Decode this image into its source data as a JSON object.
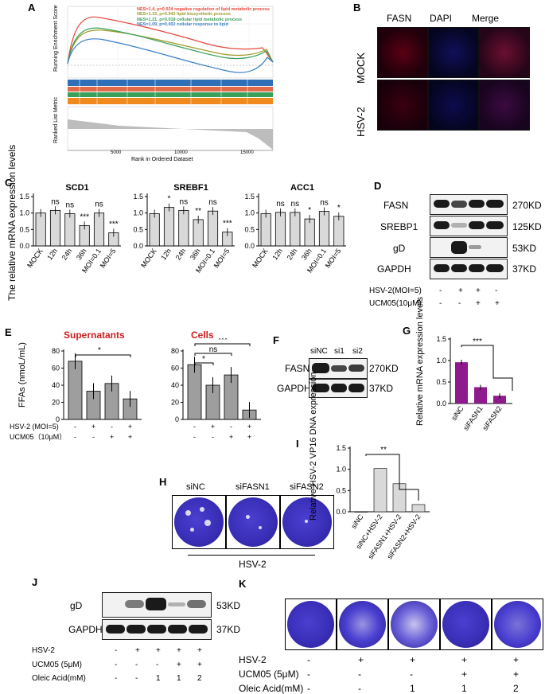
{
  "panels": {
    "A": "A",
    "B": "B",
    "C": "C",
    "D": "D",
    "E": "E",
    "F": "F",
    "G": "G",
    "H": "H",
    "I": "I",
    "J": "J",
    "K": "K"
  },
  "panelA": {
    "ylabel_top": "Running Enrichment Score",
    "ylabel_bottom": "Ranked List Metric",
    "xlabel": "Rank in Ordered Dataset",
    "xticks": [
      "5000",
      "10000",
      "15000"
    ],
    "legend": [
      {
        "text": "NES=1.4, p=0.024 negative regulation of lipid metabolic process",
        "color": "#e8463a"
      },
      {
        "text": "NES=1.15, p=0.043 lipid biosynthetic process",
        "color": "#9c9a2a"
      },
      {
        "text": "NES=1.21, p=0.018 cellular lipid metabolic process",
        "color": "#3aa05a"
      },
      {
        "text": "NES=1.09, p=0.002 cellular response to lipid",
        "color": "#3a7fc4"
      }
    ]
  },
  "panelB": {
    "cols": [
      "FASN",
      "DAPI",
      "Merge"
    ],
    "rows": [
      "MOCK",
      "HSV-2"
    ]
  },
  "panelC": {
    "ylabel": "The relative mRNA expression levels",
    "categories": [
      "MOCK",
      "12h",
      "24h",
      "36h",
      "MOI=0.1",
      "MOI=5"
    ],
    "charts": [
      {
        "title": "SCD1",
        "values": [
          1.0,
          1.08,
          0.98,
          0.62,
          1.0,
          0.4
        ],
        "sig": [
          "",
          "ns",
          "ns",
          "***",
          "ns",
          "***"
        ]
      },
      {
        "title": "SREBF1",
        "values": [
          0.98,
          1.17,
          1.08,
          0.8,
          1.06,
          0.42
        ],
        "sig": [
          "",
          "*",
          "ns",
          "**",
          "ns",
          "***"
        ]
      },
      {
        "title": "ACC1",
        "values": [
          0.98,
          1.02,
          1.02,
          0.82,
          1.05,
          0.9
        ],
        "sig": [
          "",
          "ns",
          "ns",
          "*",
          "ns",
          "*"
        ]
      }
    ],
    "yticks": [
      "0.0",
      "0.5",
      "1.0",
      "1.5"
    ]
  },
  "panelD": {
    "rows": [
      "FASN",
      "SREBP1",
      "gD",
      "GAPDH"
    ],
    "sizes": [
      "270KD",
      "125KD",
      "53KD",
      "37KD"
    ],
    "cond_labels": [
      "HSV-2(MOI=5)",
      "UCM05(10μM)"
    ],
    "cond_hsv": [
      "-",
      "+",
      "+",
      "-"
    ],
    "cond_ucm": [
      "-",
      "-",
      "+",
      "+"
    ]
  },
  "panelE": {
    "ylabel": "FFAs (nmoL/mL)",
    "titles": [
      "Supernatants",
      "Cells"
    ],
    "yticks": [
      "0",
      "20",
      "40",
      "60",
      "80"
    ],
    "sup_values": [
      68,
      33,
      42,
      24
    ],
    "cell_values": [
      64,
      40,
      52,
      11
    ],
    "sup_sig": [
      "*"
    ],
    "cell_sig": [
      "***",
      "ns",
      "*"
    ],
    "cond_labels": [
      "HSV-2 (MOI=5)",
      "UCM05（10μM）"
    ],
    "cond_hsv": [
      "-",
      "+",
      "-",
      "+"
    ],
    "cond_ucm": [
      "-",
      "-",
      "+",
      "+"
    ]
  },
  "panelF": {
    "lanes": [
      "siNC",
      "si1",
      "si2"
    ],
    "rows": [
      "FASN",
      "GAPDH"
    ],
    "sizes": [
      "270KD",
      "37KD"
    ]
  },
  "panelG": {
    "ylabel": "Relative mRNA expression levels",
    "yticks": [
      "0.0",
      "0.5",
      "1.0",
      "1.5"
    ],
    "categories": [
      "siNC",
      "siFASN1",
      "siFASN2"
    ],
    "values": [
      0.96,
      0.38,
      0.18
    ],
    "sig": "***"
  },
  "panelH": {
    "labels": [
      "siNC",
      "siFASN1",
      "siFASN2"
    ],
    "bottom": "HSV-2"
  },
  "panelI": {
    "ylabel": "Relative HSV-2 VP16 DNA expression",
    "yticks": [
      "0.0",
      "0.5",
      "1.0",
      "1.5"
    ],
    "categories": [
      "siNC",
      "siNC+HSV-2",
      "siFASN1+HSV-2",
      "siFASN2+HSV-2"
    ],
    "values": [
      0.0,
      1.02,
      0.66,
      0.17
    ],
    "sig": "**"
  },
  "panelJ": {
    "rows": [
      "gD",
      "GAPDH"
    ],
    "sizes": [
      "53KD",
      "37KD"
    ],
    "cond_labels": [
      "HSV-2",
      "UCM05 (5μM)",
      "Oleic Acid(mM)"
    ],
    "cond_hsv": [
      "-",
      "+",
      "+",
      "+",
      "+"
    ],
    "cond_ucm": [
      "-",
      "-",
      "-",
      "+",
      "+"
    ],
    "cond_oa": [
      "-",
      "-",
      "1",
      "1",
      "2"
    ]
  },
  "panelK": {
    "cond_labels": [
      "HSV-2",
      "UCM05 (5μM)",
      "Oleic Acid(mM)"
    ],
    "cond_hsv": [
      "-",
      "+",
      "+",
      "+",
      "+"
    ],
    "cond_ucm": [
      "-",
      "-",
      "-",
      "+",
      "+"
    ],
    "cond_oa": [
      "-",
      "-",
      "1",
      "1",
      "2"
    ]
  },
  "colors": {
    "grey_bar": "#d9d9d9",
    "dark_bar": "#9e9e9e",
    "purple": "#8e1a8e",
    "red_title": "#cc1f1f",
    "dish": "#3a2fb8"
  }
}
